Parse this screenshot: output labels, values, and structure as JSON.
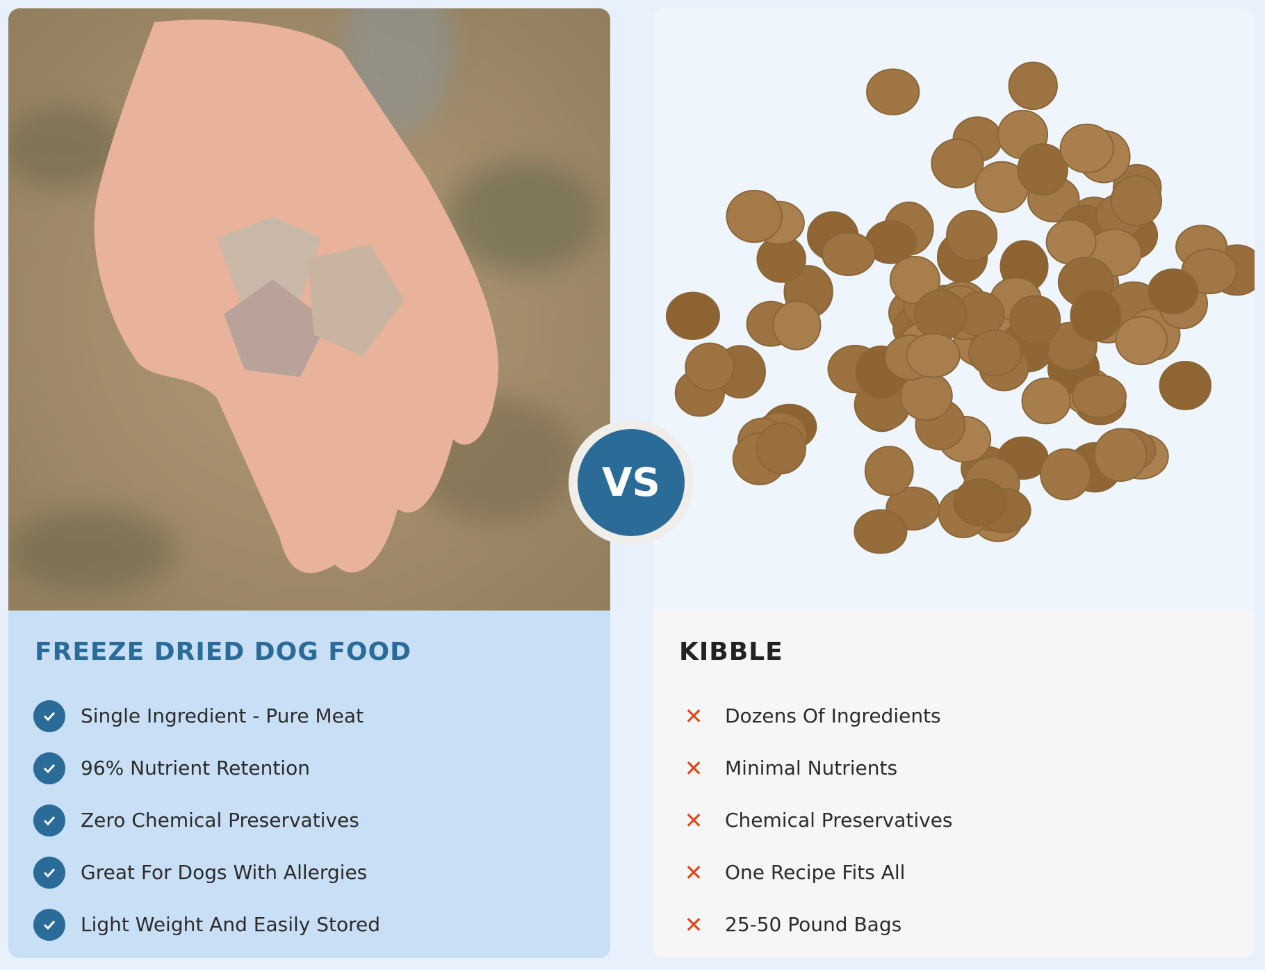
{
  "freeze_dried": {
    "title": "FREEZE DRIED DOG FOOD",
    "image": "hand-holding-freeze-dried-cubes",
    "items": [
      "Single Ingredient - Pure Meat",
      "96% Nutrient Retention",
      "Zero Chemical Preservatives",
      "Great For Dogs With Allergies",
      "Light Weight And Easily Stored"
    ],
    "icon": "check-circle-icon"
  },
  "kibble": {
    "title": "KIBBLE",
    "image": "pile-of-kibble",
    "items": [
      "Dozens Of Ingredients",
      "Minimal Nutrients",
      "Chemical Preservatives",
      "One Recipe Fits All",
      "25-50 Pound Bags"
    ],
    "icon": "x-icon"
  },
  "vs_label": "VS",
  "colors": {
    "accent": "#2a6b98",
    "negative": "#e0461a",
    "left_bg": "#c8dff5",
    "right_bg": "#f6f6f6",
    "page_bg": "#e8f1fb"
  }
}
